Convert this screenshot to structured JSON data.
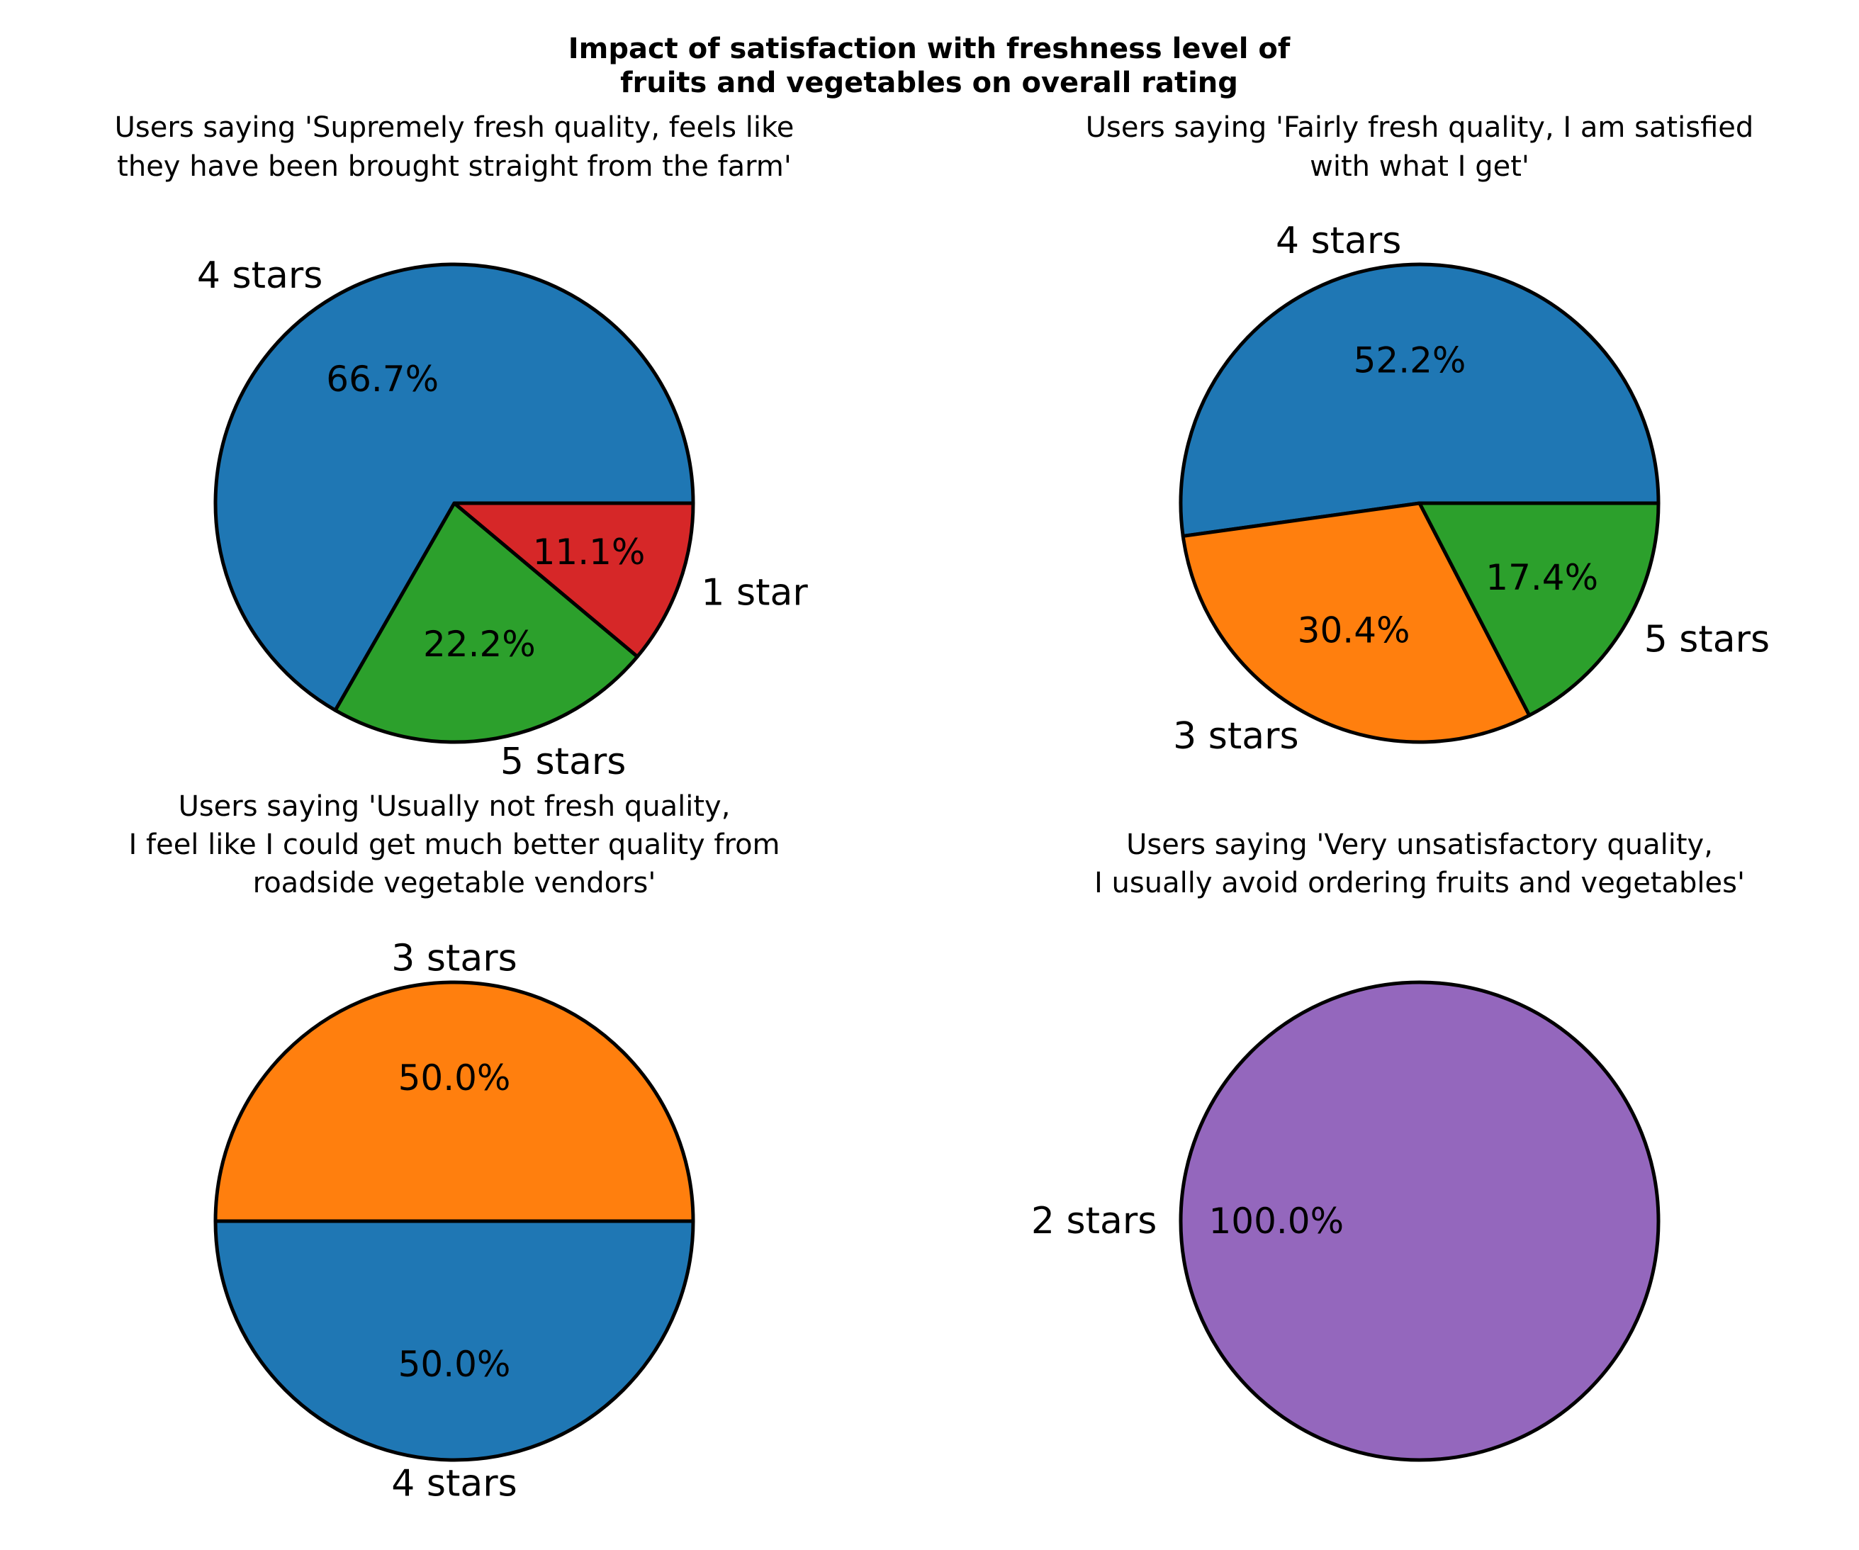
{
  "title_lines": [
    "Impact of satisfaction with freshness level of",
    "fruits and vegetables on overall rating"
  ],
  "chart_data": [
    {
      "type": "pie",
      "title_lines": [
        "Users saying 'Supremely fresh quality, feels like",
        "they have been brought straight from the farm'"
      ],
      "labels": [
        "4 stars",
        "5 stars",
        "1 star"
      ],
      "values": [
        66.7,
        22.2,
        11.1
      ],
      "pct_labels": [
        "66.7%",
        "22.2%",
        "11.1%"
      ],
      "colors": [
        "#1f77b4",
        "#2ca02c",
        "#d62728"
      ]
    },
    {
      "type": "pie",
      "title_lines": [
        "Users saying 'Fairly fresh quality, I am satisfied",
        "with what I get'"
      ],
      "labels": [
        "4 stars",
        "3 stars",
        "5 stars"
      ],
      "values": [
        52.2,
        30.4,
        17.4
      ],
      "pct_labels": [
        "52.2%",
        "30.4%",
        "17.4%"
      ],
      "colors": [
        "#1f77b4",
        "#ff7f0e",
        "#2ca02c"
      ]
    },
    {
      "type": "pie",
      "title_lines": [
        "Users saying 'Usually not fresh quality,",
        "I feel like I could get much better quality from",
        "roadside vegetable vendors'"
      ],
      "labels": [
        "3 stars",
        "4 stars"
      ],
      "values": [
        50.0,
        50.0
      ],
      "pct_labels": [
        "50.0%",
        "50.0%"
      ],
      "colors": [
        "#ff7f0e",
        "#1f77b4"
      ]
    },
    {
      "type": "pie",
      "title_lines": [
        "Users saying 'Very unsatisfactory quality,",
        "I usually avoid ordering fruits and vegetables'"
      ],
      "labels": [
        "2 stars"
      ],
      "values": [
        100.0
      ],
      "pct_labels": [
        "100.0%"
      ],
      "colors": [
        "#9467bd"
      ]
    }
  ]
}
